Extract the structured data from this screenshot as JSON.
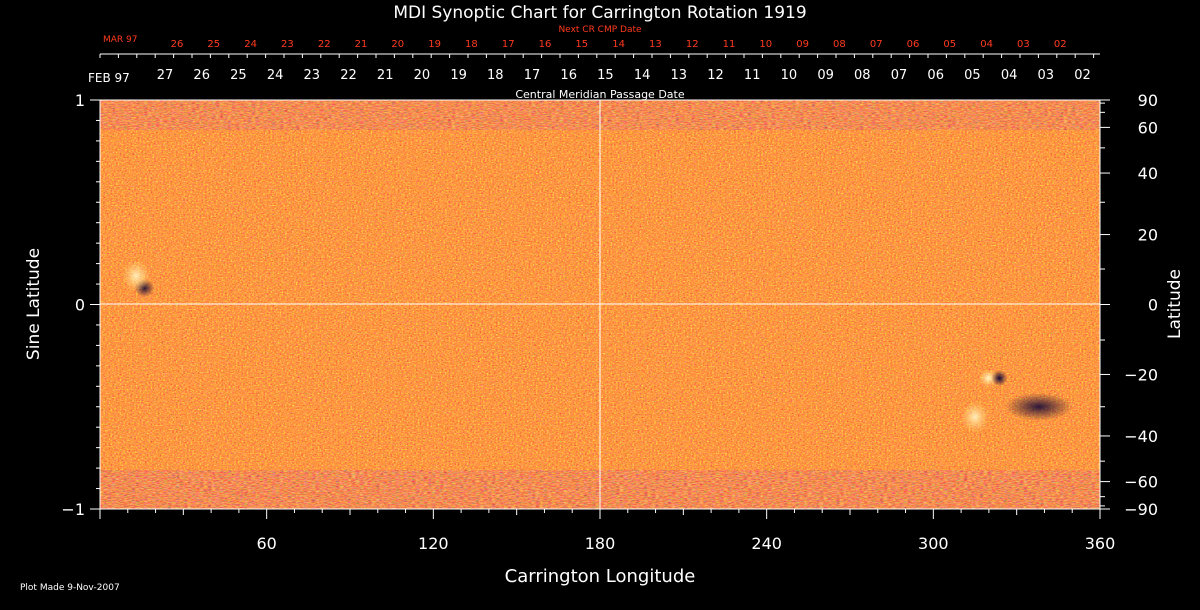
{
  "chart_data": {
    "type": "heatmap",
    "title": "MDI Synoptic Chart for Carrington Rotation 1919",
    "xlabel": "Carrington Longitude",
    "ylabel_left": "Sine Latitude",
    "ylabel_right": "Latitude",
    "xlim": [
      0,
      360
    ],
    "ylim": [
      -1,
      1
    ],
    "x_ticks": [
      60,
      120,
      180,
      240,
      300,
      360
    ],
    "left_ticks": [
      {
        "value": 1,
        "label": "1"
      },
      {
        "value": 0,
        "label": "0"
      },
      {
        "value": -1,
        "label": "−1"
      }
    ],
    "right_ticks": [
      {
        "deg": 90,
        "label": "90"
      },
      {
        "deg": 60,
        "label": "60"
      },
      {
        "deg": 40,
        "label": "40"
      },
      {
        "deg": 20,
        "label": "20"
      },
      {
        "deg": 0,
        "label": "0"
      },
      {
        "deg": -20,
        "label": "−20"
      },
      {
        "deg": -40,
        "label": "−40"
      },
      {
        "deg": -60,
        "label": "−60"
      },
      {
        "deg": -90,
        "label": "−90"
      }
    ],
    "date_axis": {
      "month_label": "FEB 97",
      "days": [
        "27",
        "26",
        "25",
        "24",
        "23",
        "22",
        "21",
        "20",
        "19",
        "18",
        "17",
        "16",
        "15",
        "14",
        "13",
        "12",
        "11",
        "10",
        "09",
        "08",
        "07",
        "06",
        "05",
        "04",
        "03",
        "02"
      ],
      "caption": "Central Meridian Passage Date"
    },
    "next_date_axis": {
      "month_label": "MAR 97",
      "days": [
        "26",
        "25",
        "24",
        "23",
        "22",
        "21",
        "20",
        "19",
        "18",
        "17",
        "16",
        "15",
        "14",
        "13",
        "12",
        "11",
        "10",
        "09",
        "08",
        "07",
        "06",
        "05",
        "04",
        "03",
        "02"
      ],
      "caption": "Next CR CMP Date"
    },
    "features": [
      {
        "name": "negative polarity spot",
        "lon": 16,
        "sinlat": 0.08
      },
      {
        "name": "positive polarity plage",
        "lon": 13,
        "sinlat": 0.14
      },
      {
        "name": "bipolar active region",
        "lon": 322,
        "sinlat": -0.36
      },
      {
        "name": "positive plage south",
        "lon": 315,
        "sinlat": -0.55
      },
      {
        "name": "negative cluster south",
        "lon": 338,
        "sinlat": -0.5
      }
    ],
    "colors": {
      "background": "#ff4a1a",
      "positive": "#ffe07a",
      "negative": "#20104a"
    }
  },
  "footer": {
    "plot_made": "Plot Made  9-Nov-2007"
  }
}
